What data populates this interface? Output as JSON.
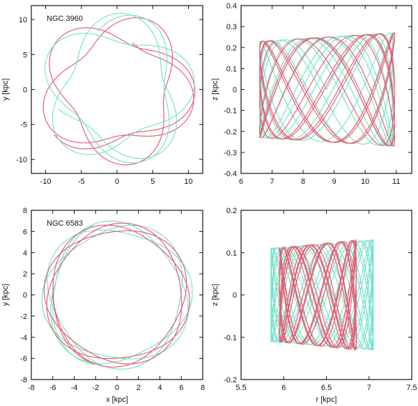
{
  "colors": {
    "red": "#e8566e",
    "cyan": "#6fe2c8",
    "axis": "#111111"
  },
  "chart_data": [
    {
      "type": "line",
      "panel_label": "NGC 3960",
      "xlabel": "",
      "ylabel": "y [kpc]",
      "xlim": [
        -12,
        12
      ],
      "ylim": [
        -12,
        12
      ],
      "xticks": [
        "-10",
        "-5",
        "0",
        "5",
        "10"
      ],
      "yticks": [
        "-10",
        "-5",
        "0",
        "5",
        "10"
      ],
      "series": [
        {
          "color": "red",
          "shape": "rosette",
          "r_min": 6.6,
          "r_max": 10.9,
          "radial_periods": 6.6,
          "azimuthal_turns": 2.6,
          "phase": 0.6,
          "r_phase": 0.0,
          "z_amp": 0,
          "z_periods": 0
        },
        {
          "color": "cyan",
          "shape": "rosette",
          "r_min": 6.6,
          "r_max": 10.9,
          "radial_periods": 7.0,
          "azimuthal_turns": 2.75,
          "phase": 0.55,
          "r_phase": 0.25,
          "z_amp": 0,
          "z_periods": 0
        }
      ]
    },
    {
      "type": "line",
      "panel_label": "",
      "xlabel": "",
      "ylabel": "z [kpc]",
      "xlim": [
        6,
        11.5
      ],
      "ylim": [
        -0.4,
        0.4
      ],
      "xticks": [
        "6",
        "7",
        "8",
        "9",
        "10",
        "11"
      ],
      "yticks": [
        "-0.4",
        "-0.3",
        "-0.2",
        "-0.1",
        "0",
        "0.1",
        "0.2",
        "0.3",
        "0.4"
      ],
      "series": [
        {
          "color": "cyan",
          "shape": "meridional",
          "r_min": 6.6,
          "r_max": 10.9,
          "radial_periods": 7.0,
          "z_amp": 0.27,
          "z_periods": 16.5,
          "r_phase": 0.25
        },
        {
          "color": "red",
          "shape": "meridional",
          "r_min": 6.6,
          "r_max": 10.95,
          "radial_periods": 6.6,
          "z_amp": 0.27,
          "z_periods": 15.2,
          "r_phase": 0.0
        }
      ]
    },
    {
      "type": "line",
      "panel_label": "NGC 6583",
      "xlabel": "x [kpc]",
      "ylabel": "y [kpc]",
      "xlim": [
        -8,
        8
      ],
      "ylim": [
        -8,
        8
      ],
      "xticks": [
        "-8",
        "-6",
        "-4",
        "-2",
        "0",
        "2",
        "4",
        "6",
        "8"
      ],
      "yticks": [
        "-8",
        "-6",
        "-4",
        "-2",
        "0",
        "2",
        "4",
        "6",
        "8"
      ],
      "series": [
        {
          "color": "cyan",
          "shape": "rosette",
          "r_min": 5.85,
          "r_max": 7.05,
          "radial_periods": 9.0,
          "azimuthal_turns": 3.4,
          "phase": 0.3,
          "r_phase": 0.1,
          "z_amp": 0,
          "z_periods": 0
        },
        {
          "color": "red",
          "shape": "rosette",
          "r_min": 5.95,
          "r_max": 6.85,
          "radial_periods": 8.6,
          "azimuthal_turns": 3.2,
          "phase": 0.5,
          "r_phase": 0.4,
          "z_amp": 0,
          "z_periods": 0
        }
      ]
    },
    {
      "type": "line",
      "panel_label": "",
      "xlabel": "r [kpc]",
      "ylabel": "z [kpc]",
      "xlim": [
        5.5,
        7.5
      ],
      "ylim": [
        -0.2,
        0.2
      ],
      "xticks": [
        "5.5",
        "6",
        "6.5",
        "7",
        "7.5"
      ],
      "yticks": [
        "-0.2",
        "-0.1",
        "0",
        "0.1",
        "0.2"
      ],
      "series": [
        {
          "color": "cyan",
          "shape": "meridional",
          "r_min": 5.85,
          "r_max": 7.05,
          "radial_periods": 9.0,
          "z_amp": 0.13,
          "z_periods": 26,
          "r_phase": 0.1
        },
        {
          "color": "red",
          "shape": "meridional",
          "r_min": 5.95,
          "r_max": 6.85,
          "radial_periods": 8.6,
          "z_amp": 0.13,
          "z_periods": 24,
          "r_phase": 0.4
        }
      ]
    }
  ]
}
